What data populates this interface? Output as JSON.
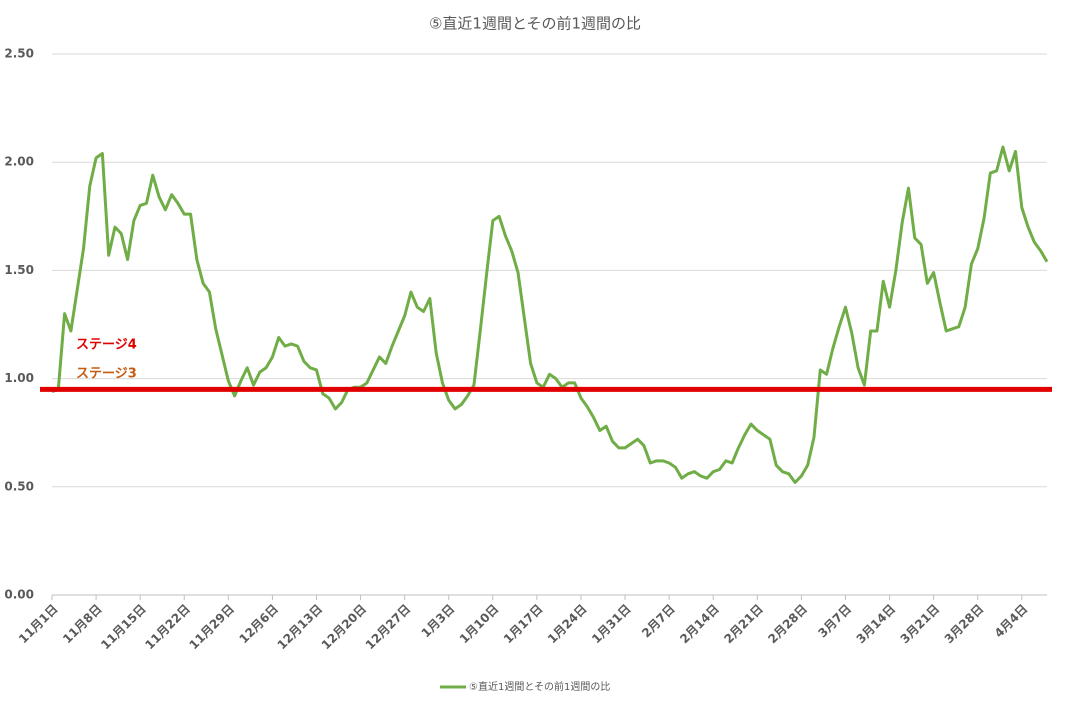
{
  "chart_data": {
    "type": "line",
    "title": "⑤直近1週間とその前1週間の比",
    "categories": [
      "11月1日",
      null,
      null,
      null,
      null,
      null,
      null,
      "11月8日",
      null,
      null,
      null,
      null,
      null,
      null,
      "11月15日",
      null,
      null,
      null,
      null,
      null,
      null,
      "11月22日",
      null,
      null,
      null,
      null,
      null,
      null,
      "11月29日",
      null,
      null,
      null,
      null,
      null,
      null,
      "12月6日",
      null,
      null,
      null,
      null,
      null,
      null,
      "12月13日",
      null,
      null,
      null,
      null,
      null,
      null,
      "12月20日",
      null,
      null,
      null,
      null,
      null,
      null,
      "12月27日",
      null,
      null,
      null,
      null,
      null,
      null,
      "1月3日",
      null,
      null,
      null,
      null,
      null,
      null,
      "1月10日",
      null,
      null,
      null,
      null,
      null,
      null,
      "1月17日",
      null,
      null,
      null,
      null,
      null,
      null,
      "1月24日",
      null,
      null,
      null,
      null,
      null,
      null,
      "1月31日",
      null,
      null,
      null,
      null,
      null,
      null,
      "2月7日",
      null,
      null,
      null,
      null,
      null,
      null,
      "2月14日",
      null,
      null,
      null,
      null,
      null,
      null,
      "2月21日",
      null,
      null,
      null,
      null,
      null,
      null,
      "2月28日",
      null,
      null,
      null,
      null,
      null,
      null,
      "3月7日",
      null,
      null,
      null,
      null,
      null,
      null,
      "3月14日",
      null,
      null,
      null,
      null,
      null,
      null,
      "3月21日",
      null,
      null,
      null,
      null,
      null,
      null,
      "3月28日",
      null,
      null,
      null,
      null,
      null,
      null,
      "4月4日",
      null,
      null,
      null,
      null
    ],
    "series": [
      {
        "name": "⑤直近1週間とその前1週間の比",
        "color": "#70ad47",
        "values": [
          0.94,
          0.95,
          1.3,
          1.22,
          1.41,
          1.6,
          1.89,
          2.02,
          2.04,
          1.57,
          1.7,
          1.67,
          1.55,
          1.73,
          1.8,
          1.81,
          1.94,
          1.84,
          1.78,
          1.85,
          1.81,
          1.76,
          1.76,
          1.55,
          1.44,
          1.4,
          1.23,
          1.11,
          0.99,
          0.92,
          0.99,
          1.05,
          0.97,
          1.03,
          1.05,
          1.1,
          1.19,
          1.15,
          1.16,
          1.15,
          1.08,
          1.05,
          1.04,
          0.93,
          0.91,
          0.86,
          0.89,
          0.95,
          0.96,
          0.96,
          0.98,
          1.04,
          1.1,
          1.07,
          1.15,
          1.22,
          1.29,
          1.4,
          1.33,
          1.31,
          1.37,
          1.12,
          0.98,
          0.9,
          0.86,
          0.88,
          0.92,
          0.97,
          1.22,
          1.48,
          1.73,
          1.75,
          1.66,
          1.59,
          1.49,
          1.28,
          1.07,
          0.98,
          0.96,
          1.02,
          1.0,
          0.96,
          0.98,
          0.98,
          0.91,
          0.87,
          0.82,
          0.76,
          0.78,
          0.71,
          0.68,
          0.68,
          0.7,
          0.72,
          0.69,
          0.61,
          0.62,
          0.62,
          0.61,
          0.59,
          0.54,
          0.56,
          0.57,
          0.55,
          0.54,
          0.57,
          0.58,
          0.62,
          0.61,
          0.68,
          0.74,
          0.79,
          0.76,
          0.74,
          0.72,
          0.6,
          0.57,
          0.56,
          0.52,
          0.55,
          0.6,
          0.73,
          1.04,
          1.02,
          1.14,
          1.24,
          1.33,
          1.21,
          1.05,
          0.97,
          1.22,
          1.22,
          1.45,
          1.33,
          1.5,
          1.72,
          1.88,
          1.65,
          1.62,
          1.44,
          1.49,
          1.35,
          1.22,
          1.23,
          1.24,
          1.33,
          1.53,
          1.6,
          1.74,
          1.95,
          1.96,
          2.07,
          1.96,
          2.05,
          1.79,
          1.7,
          1.63,
          1.59,
          1.54
        ]
      }
    ],
    "ylim": [
      0,
      2.5
    ],
    "yticks": [
      {
        "value": 0,
        "label": "0.00"
      },
      {
        "value": 0.5,
        "label": "0.50"
      },
      {
        "value": 1,
        "label": "1.00"
      },
      {
        "value": 1.5,
        "label": "1.50"
      },
      {
        "value": 2,
        "label": "2.00"
      },
      {
        "value": 2.5,
        "label": "2.50"
      }
    ],
    "grid": true,
    "legend": "bottom",
    "reference_line": {
      "value": 0.95,
      "color": "#e00000"
    },
    "annotations": [
      {
        "text": "ステージ4",
        "color": "#e00000"
      },
      {
        "text": "ステージ3",
        "color": "#c55a11"
      }
    ]
  }
}
